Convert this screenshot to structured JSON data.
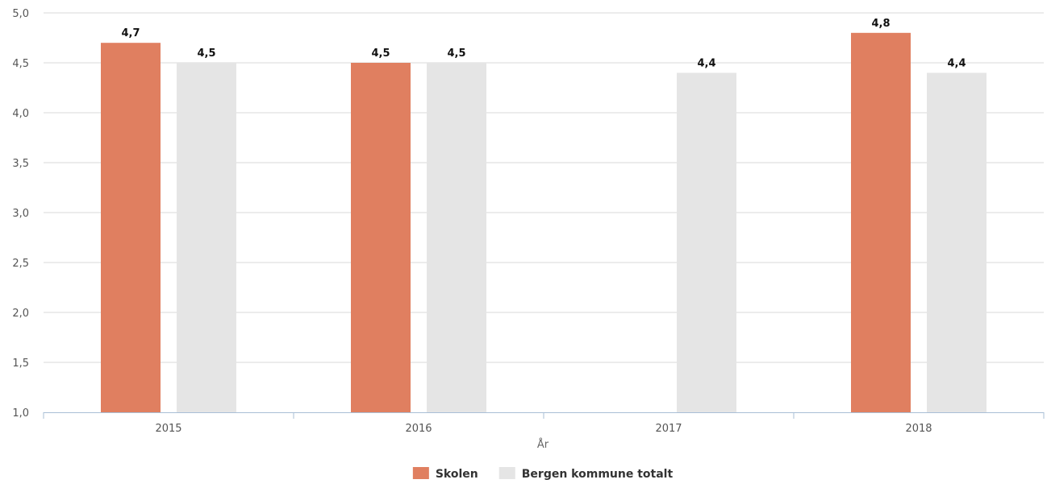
{
  "chart_data": {
    "type": "bar",
    "title": "",
    "xlabel": "År",
    "ylabel": "",
    "categories": [
      "2015",
      "2016",
      "2017",
      "2018"
    ],
    "series": [
      {
        "name": "Skolen",
        "values": [
          4.7,
          4.5,
          null,
          4.8
        ],
        "labels": [
          "4,7",
          "4,5",
          "",
          "4,8"
        ],
        "color": "#e07f60"
      },
      {
        "name": "Bergen kommune totalt",
        "values": [
          4.5,
          4.5,
          4.4,
          4.4
        ],
        "labels": [
          "4,5",
          "4,5",
          "4,4",
          "4,4"
        ],
        "color": "#e5e5e5"
      }
    ],
    "ylim": [
      1.0,
      5.0
    ],
    "yticks": [
      1.0,
      1.5,
      2.0,
      2.5,
      3.0,
      3.5,
      4.0,
      4.5,
      5.0
    ],
    "ytick_labels": [
      "1,0",
      "1,5",
      "2,0",
      "2,5",
      "3,0",
      "3,5",
      "4,0",
      "4,5",
      "5,0"
    ],
    "grid": true,
    "legend_position": "bottom-center",
    "colors": {
      "grid": "#d9d9d9",
      "axis": "#a9bfd6"
    }
  }
}
